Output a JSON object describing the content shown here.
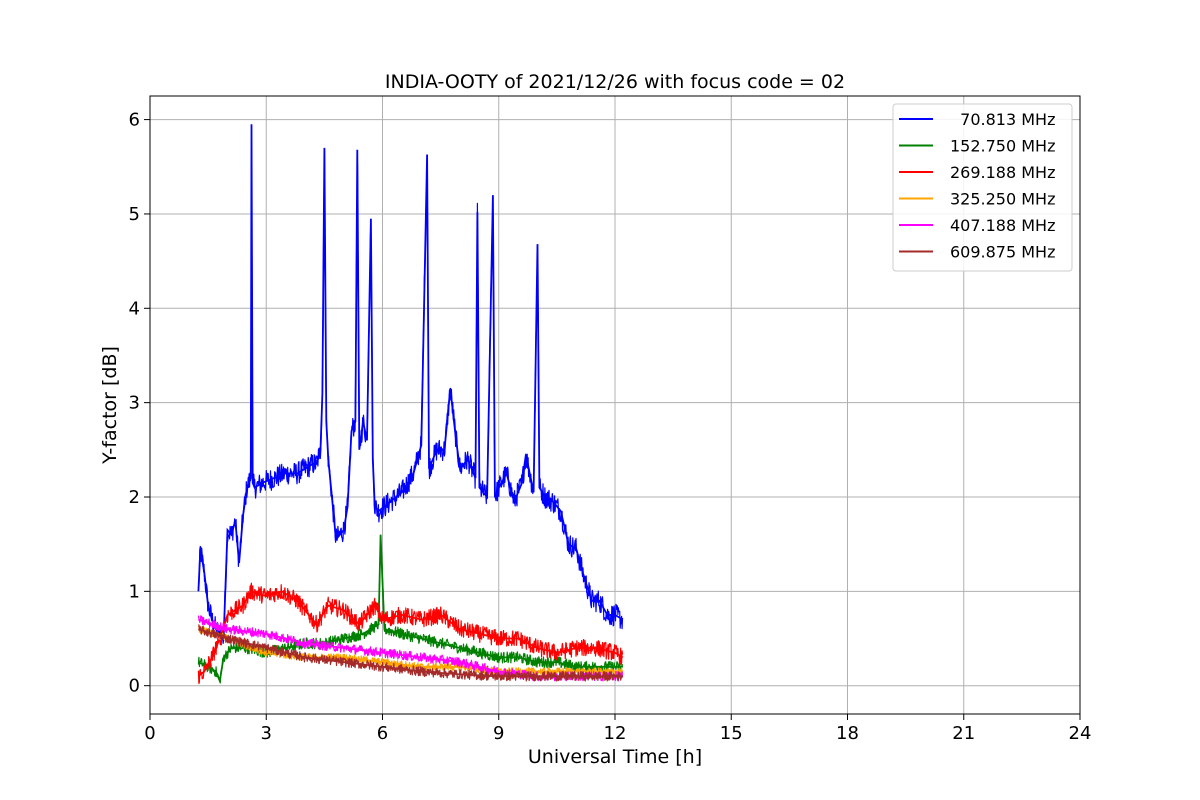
{
  "chart_data": {
    "type": "line",
    "title": "INDIA-OOTY of 2021/12/26 with focus code = 02",
    "xlabel": "Universal Time [h]",
    "ylabel": "Y-factor [dB]",
    "xlim": [
      0,
      24
    ],
    "ylim": [
      -0.3,
      6.25
    ],
    "xticks": [
      0,
      3,
      6,
      9,
      12,
      15,
      18,
      21,
      24
    ],
    "yticks": [
      0,
      1,
      2,
      3,
      4,
      5,
      6
    ],
    "grid": true,
    "legend_position": "top-right",
    "series": [
      {
        "name": "  70.813 MHz",
        "color": "#0000ff",
        "noise": 0.12,
        "x": [
          1.25,
          1.3,
          1.4,
          1.5,
          1.6,
          1.7,
          1.8,
          1.9,
          2.0,
          2.1,
          2.2,
          2.3,
          2.4,
          2.5,
          2.6,
          2.62,
          2.65,
          2.7,
          2.9,
          3.2,
          3.5,
          3.8,
          4.0,
          4.2,
          4.3,
          4.4,
          4.45,
          4.5,
          4.55,
          4.6,
          4.8,
          5.0,
          5.1,
          5.2,
          5.3,
          5.35,
          5.4,
          5.5,
          5.6,
          5.7,
          5.75,
          5.8,
          5.9,
          6.2,
          6.5,
          6.8,
          7.0,
          7.15,
          7.2,
          7.4,
          7.6,
          7.75,
          7.9,
          8.0,
          8.2,
          8.4,
          8.45,
          8.5,
          8.7,
          8.85,
          8.9,
          9.0,
          9.2,
          9.4,
          9.6,
          9.7,
          9.9,
          10.0,
          10.05,
          10.2,
          10.4,
          10.6,
          10.8,
          11.0,
          11.2,
          11.4,
          11.6,
          11.8,
          12.0,
          12.2
        ],
        "y": [
          1.0,
          1.45,
          1.2,
          0.85,
          0.7,
          0.6,
          0.55,
          0.5,
          1.65,
          1.6,
          1.75,
          1.3,
          1.8,
          2.1,
          2.2,
          5.95,
          2.15,
          2.1,
          2.15,
          2.2,
          2.25,
          2.25,
          2.3,
          2.35,
          2.35,
          2.5,
          3.1,
          5.7,
          2.8,
          2.4,
          1.55,
          1.65,
          1.9,
          2.7,
          2.8,
          5.68,
          2.5,
          2.8,
          2.6,
          4.95,
          2.4,
          1.9,
          1.85,
          1.95,
          2.05,
          2.25,
          2.55,
          5.63,
          2.3,
          2.5,
          2.5,
          3.15,
          2.6,
          2.3,
          2.4,
          2.2,
          5.02,
          2.1,
          2.0,
          5.2,
          2.0,
          2.1,
          2.25,
          1.95,
          2.15,
          2.45,
          2.05,
          4.68,
          2.1,
          2.0,
          1.95,
          1.85,
          1.5,
          1.45,
          1.15,
          0.9,
          0.9,
          0.75,
          0.75,
          0.7
        ]
      },
      {
        "name": "152.750 MHz",
        "color": "#008000",
        "noise": 0.06,
        "x": [
          1.25,
          1.5,
          1.7,
          1.8,
          1.9,
          2.1,
          2.5,
          3.0,
          3.5,
          4.0,
          4.5,
          5.0,
          5.5,
          5.9,
          5.95,
          6.05,
          6.5,
          7.0,
          7.5,
          8.0,
          8.5,
          9.0,
          9.5,
          10.0,
          10.5,
          11.0,
          11.5,
          12.0,
          12.2
        ],
        "y": [
          0.25,
          0.2,
          0.15,
          0.05,
          0.3,
          0.4,
          0.4,
          0.35,
          0.4,
          0.45,
          0.45,
          0.5,
          0.55,
          0.65,
          1.6,
          0.6,
          0.55,
          0.5,
          0.45,
          0.4,
          0.35,
          0.3,
          0.3,
          0.25,
          0.25,
          0.2,
          0.2,
          0.2,
          0.2
        ]
      },
      {
        "name": "269.188 MHz",
        "color": "#ff0000",
        "noise": 0.09,
        "x": [
          1.25,
          1.4,
          1.6,
          1.8,
          2.0,
          2.2,
          2.4,
          2.6,
          3.0,
          3.4,
          3.8,
          4.0,
          4.3,
          4.6,
          5.0,
          5.4,
          5.6,
          5.8,
          6.0,
          6.5,
          7.0,
          7.5,
          8.0,
          8.5,
          9.0,
          9.5,
          10.0,
          10.5,
          11.0,
          11.5,
          12.0,
          12.2
        ],
        "y": [
          0.1,
          0.15,
          0.3,
          0.5,
          0.75,
          0.8,
          0.85,
          1.0,
          0.95,
          1.0,
          0.9,
          0.8,
          0.65,
          0.85,
          0.8,
          0.65,
          0.75,
          0.85,
          0.7,
          0.75,
          0.7,
          0.75,
          0.6,
          0.55,
          0.5,
          0.5,
          0.4,
          0.35,
          0.4,
          0.4,
          0.35,
          0.3
        ]
      },
      {
        "name": "325.250 MHz",
        "color": "#ffa500",
        "noise": 0.04,
        "x": [
          1.25,
          2.0,
          3.0,
          4.0,
          5.0,
          6.0,
          7.0,
          8.0,
          9.0,
          10.0,
          11.0,
          12.0,
          12.2
        ],
        "y": [
          0.6,
          0.5,
          0.35,
          0.3,
          0.3,
          0.25,
          0.2,
          0.2,
          0.15,
          0.15,
          0.15,
          0.15,
          0.15
        ]
      },
      {
        "name": "407.188 MHz",
        "color": "#ff00ff",
        "noise": 0.05,
        "x": [
          1.25,
          2.0,
          3.0,
          4.0,
          5.0,
          6.0,
          7.0,
          8.0,
          9.0,
          10.0,
          11.0,
          12.0,
          12.2
        ],
        "y": [
          0.7,
          0.6,
          0.55,
          0.45,
          0.4,
          0.35,
          0.3,
          0.25,
          0.15,
          0.1,
          0.1,
          0.1,
          0.1
        ]
      },
      {
        "name": "609.875 MHz",
        "color": "#a52a2a",
        "noise": 0.05,
        "x": [
          1.25,
          2.0,
          3.0,
          4.0,
          5.0,
          6.0,
          7.0,
          8.0,
          9.0,
          10.0,
          11.0,
          12.0,
          12.2
        ],
        "y": [
          0.6,
          0.5,
          0.4,
          0.3,
          0.25,
          0.2,
          0.15,
          0.12,
          0.1,
          0.1,
          0.1,
          0.1,
          0.1
        ]
      }
    ]
  }
}
